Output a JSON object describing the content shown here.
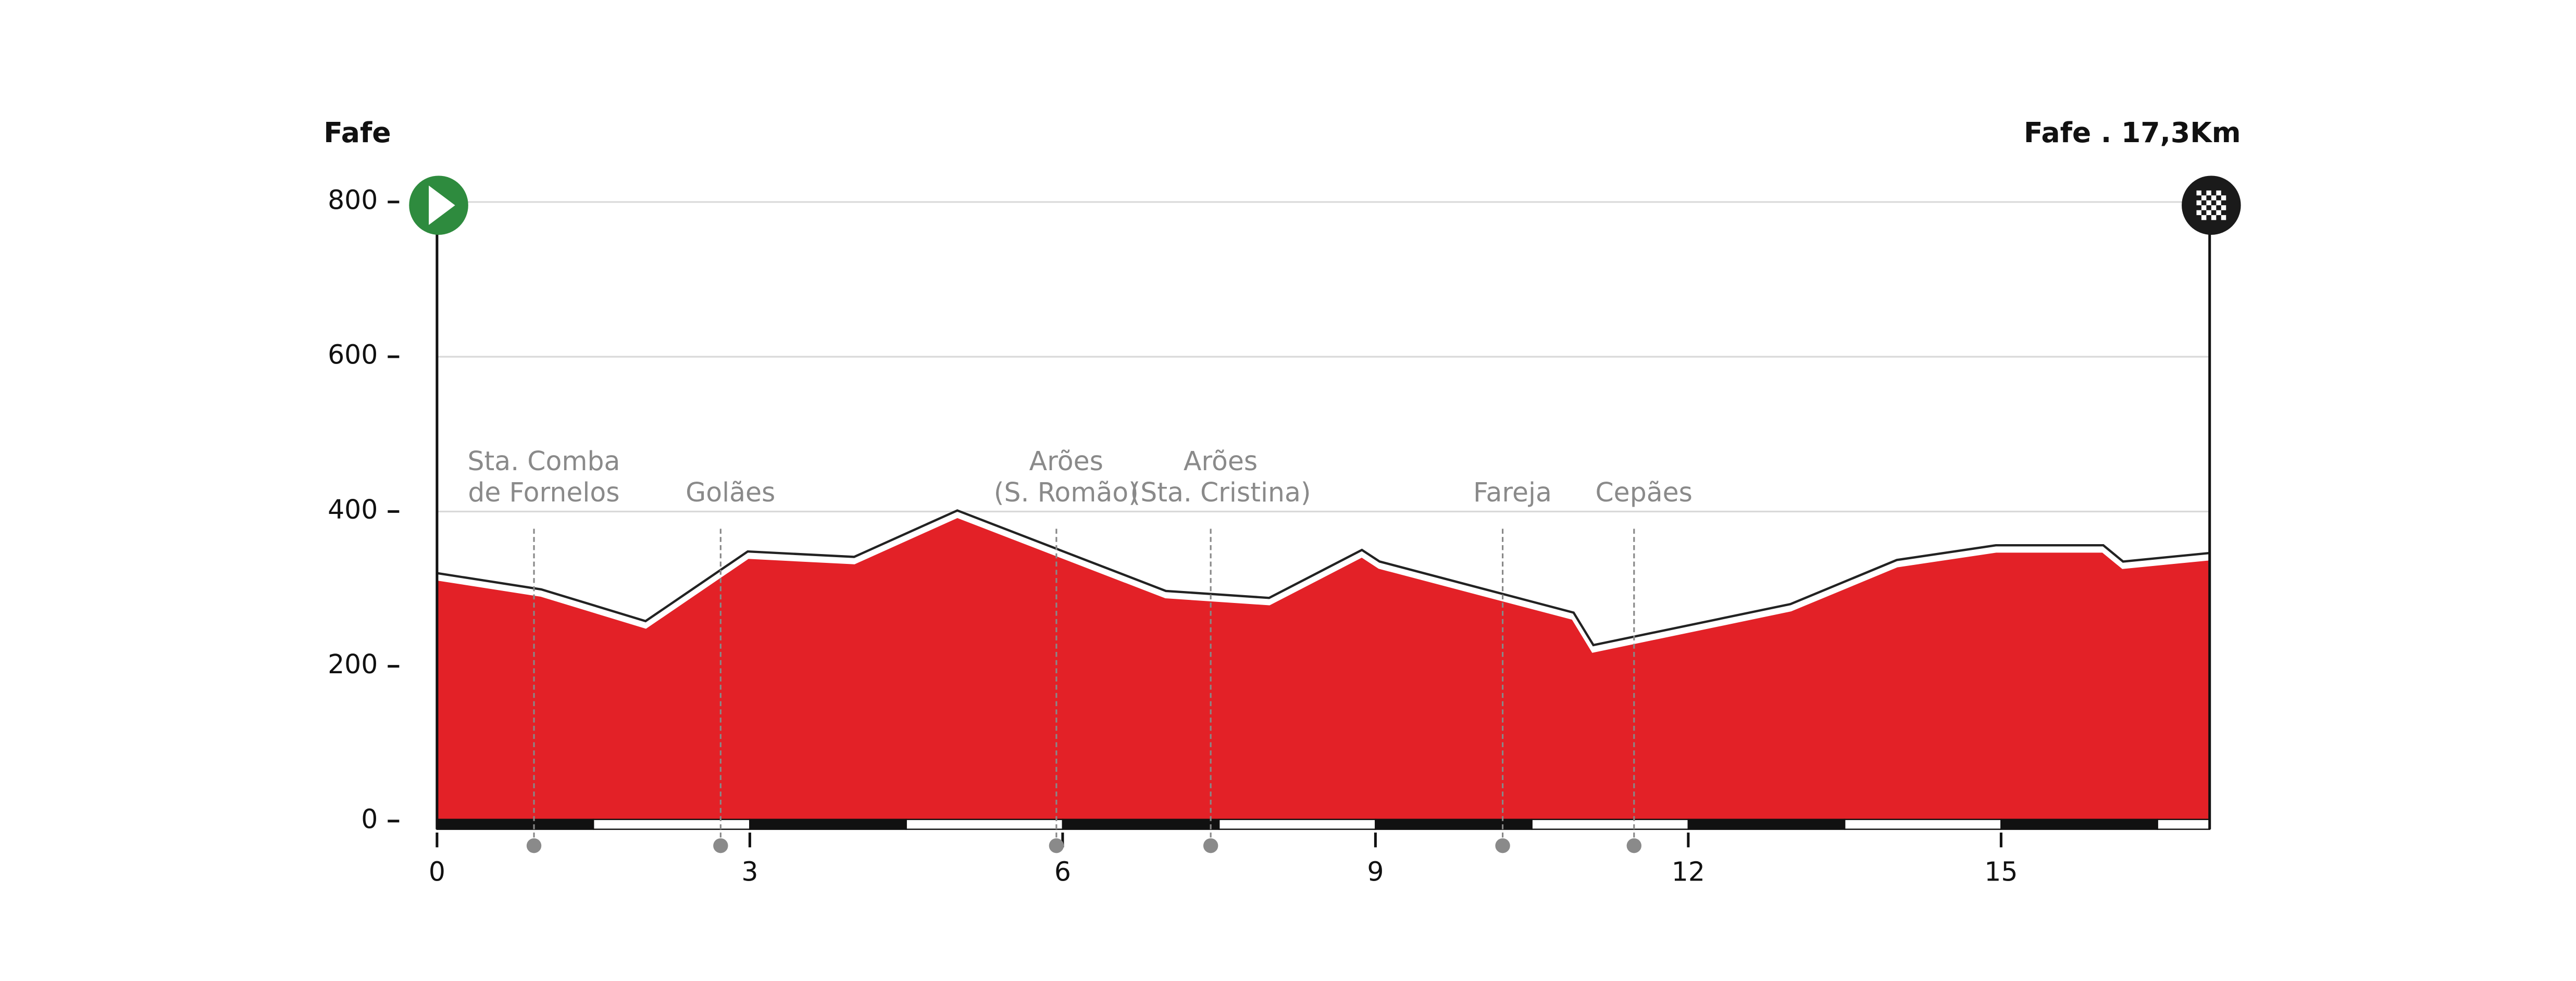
{
  "chart_data": {
    "type": "area",
    "start_label": "Fafe",
    "finish_label": "Fafe . 17,3Km",
    "x": [
      0,
      1.0,
      2.0,
      2.98,
      4.0,
      4.99,
      5.97,
      6.99,
      7.98,
      8.87,
      9.04,
      10.9,
      11.09,
      12.98,
      14.0,
      14.95,
      15.98,
      16.17,
      17.0
    ],
    "values": [
      314,
      293,
      252,
      342,
      335,
      395,
      344,
      291,
      282,
      344,
      329,
      263,
      221,
      274,
      331,
      350,
      350,
      329,
      340
    ],
    "color": "#e32127",
    "xlim": [
      0,
      17
    ],
    "xticks": [
      0,
      3,
      6,
      9,
      12,
      15
    ],
    "ylim": [
      0,
      800
    ],
    "yticks": [
      0,
      200,
      400,
      600,
      800
    ],
    "grid": true,
    "annotations": [
      {
        "x": 0.93,
        "lines": [
          "Sta. Comba",
          "de Fornelos"
        ]
      },
      {
        "x": 2.72,
        "lines": [
          "Golães"
        ]
      },
      {
        "x": 5.94,
        "lines": [
          "Arões",
          "(S. Romão)"
        ]
      },
      {
        "x": 7.42,
        "lines": [
          "Arões",
          "(Sta. Cristina)"
        ]
      },
      {
        "x": 10.22,
        "lines": [
          "Fareja"
        ]
      },
      {
        "x": 11.48,
        "lines": [
          "Cepães"
        ]
      }
    ]
  }
}
